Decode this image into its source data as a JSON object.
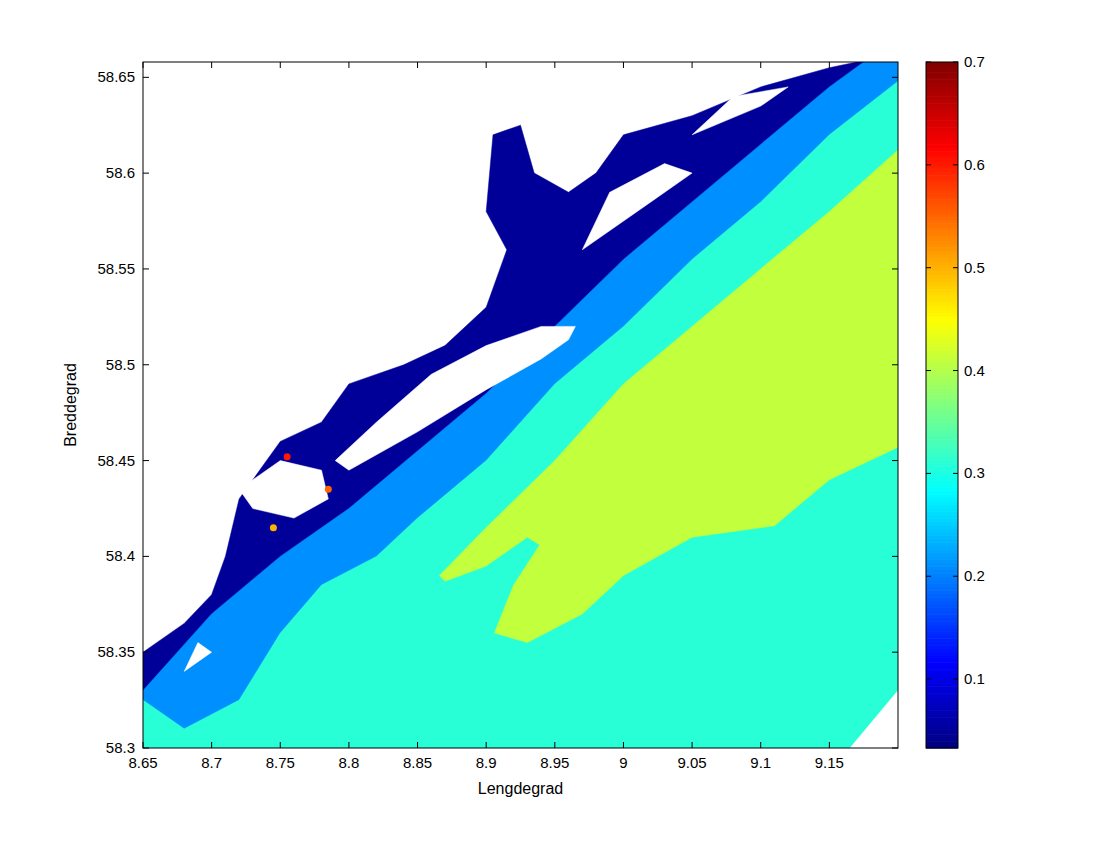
{
  "chart_data": {
    "type": "contour",
    "xlabel": "Lengdegrad",
    "ylabel": "Breddegrad",
    "xlim": [
      8.65,
      9.2
    ],
    "ylim": [
      58.3,
      58.658
    ],
    "xticks": [
      8.65,
      8.7,
      8.75,
      8.8,
      8.85,
      8.9,
      8.95,
      9,
      9.05,
      9.1,
      9.15
    ],
    "yticks": [
      58.3,
      58.35,
      58.4,
      58.45,
      58.5,
      58.55,
      58.6,
      58.65
    ],
    "colorbar": {
      "range": [
        0.033,
        0.7
      ],
      "ticks": [
        0.1,
        0.2,
        0.3,
        0.4,
        0.5,
        0.6,
        0.7
      ]
    },
    "regions": [
      {
        "value": 0.05,
        "lon": [
          8.65,
          8.68,
          8.7,
          8.71,
          8.72,
          8.75,
          8.78,
          8.8,
          8.84,
          8.87,
          8.9,
          8.915,
          8.9,
          8.905,
          8.925,
          8.935,
          8.96,
          8.98,
          9.0,
          9.05,
          9.1,
          9.15,
          9.17,
          9.2,
          9.2,
          8.65
        ],
        "lat": [
          58.35,
          58.365,
          58.38,
          58.4,
          58.43,
          58.46,
          58.47,
          58.49,
          58.5,
          58.51,
          58.53,
          58.56,
          58.58,
          58.62,
          58.625,
          58.6,
          58.59,
          58.6,
          58.62,
          58.63,
          58.645,
          58.655,
          58.658,
          58.658,
          58.3,
          58.3
        ]
      },
      {
        "value": 0.21,
        "lon": [
          8.65,
          8.7,
          8.75,
          8.8,
          8.85,
          8.9,
          8.95,
          9.0,
          9.05,
          9.1,
          9.15,
          9.175,
          9.2,
          9.2,
          8.65
        ],
        "lat": [
          58.33,
          58.37,
          58.4,
          58.425,
          58.455,
          58.485,
          58.52,
          58.555,
          58.585,
          58.615,
          58.645,
          58.658,
          58.658,
          58.3,
          58.3
        ]
      },
      {
        "value": 0.31,
        "lon": [
          8.65,
          8.68,
          8.72,
          8.75,
          8.78,
          8.82,
          8.85,
          8.9,
          8.95,
          9.0,
          9.05,
          9.1,
          9.15,
          9.2,
          9.2,
          8.65
        ],
        "lat": [
          58.325,
          58.31,
          58.325,
          58.36,
          58.385,
          58.4,
          58.42,
          58.45,
          58.49,
          58.52,
          58.555,
          58.585,
          58.62,
          58.648,
          58.3,
          58.3
        ]
      },
      {
        "value": 0.41,
        "lon": [
          8.866,
          8.9,
          8.95,
          9.0,
          9.05,
          9.1,
          9.15,
          9.2,
          9.2,
          9.15,
          9.11,
          9.05,
          9.0,
          8.97,
          8.93,
          8.906,
          8.92,
          8.939,
          8.93,
          8.9,
          8.87
        ],
        "lat": [
          58.39,
          58.415,
          58.45,
          58.49,
          58.52,
          58.55,
          58.58,
          58.612,
          58.457,
          58.44,
          58.416,
          58.41,
          58.39,
          58.37,
          58.355,
          58.36,
          58.385,
          58.406,
          58.41,
          58.395,
          58.387
        ]
      }
    ],
    "land": [
      {
        "lon": [
          8.8,
          8.85,
          8.9,
          8.94,
          8.96,
          8.965,
          8.94,
          8.9,
          8.86,
          8.82,
          8.79
        ],
        "lat": [
          58.445,
          58.465,
          58.487,
          58.503,
          58.513,
          58.52,
          58.52,
          58.51,
          58.495,
          58.47,
          58.45
        ]
      },
      {
        "lon": [
          8.72,
          8.75,
          8.78,
          8.785,
          8.76,
          8.73
        ],
        "lat": [
          58.435,
          58.45,
          58.445,
          58.43,
          58.42,
          58.425
        ]
      },
      {
        "lon": [
          8.97,
          9.02,
          9.05,
          9.03,
          8.99
        ],
        "lat": [
          58.56,
          58.585,
          58.6,
          58.605,
          58.59
        ]
      },
      {
        "lon": [
          9.05,
          9.1,
          9.12,
          9.08
        ],
        "lat": [
          58.62,
          58.635,
          58.645,
          58.64
        ]
      },
      {
        "lon": [
          8.84,
          8.88,
          8.9,
          8.88,
          8.85
        ],
        "lat": [
          58.53,
          58.55,
          58.56,
          58.57,
          58.55
        ]
      },
      {
        "lon": [
          8.68,
          8.7,
          8.69
        ],
        "lat": [
          58.34,
          58.35,
          58.355
        ]
      },
      {
        "lon": [
          9.165,
          9.2,
          9.2
        ],
        "lat": [
          58.3,
          58.3,
          58.33
        ]
      }
    ],
    "hotspots": [
      {
        "lon": 8.755,
        "lat": 58.452,
        "value": 0.6
      },
      {
        "lon": 8.785,
        "lat": 58.435,
        "value": 0.55
      },
      {
        "lon": 8.745,
        "lat": 58.415,
        "value": 0.5
      }
    ]
  }
}
